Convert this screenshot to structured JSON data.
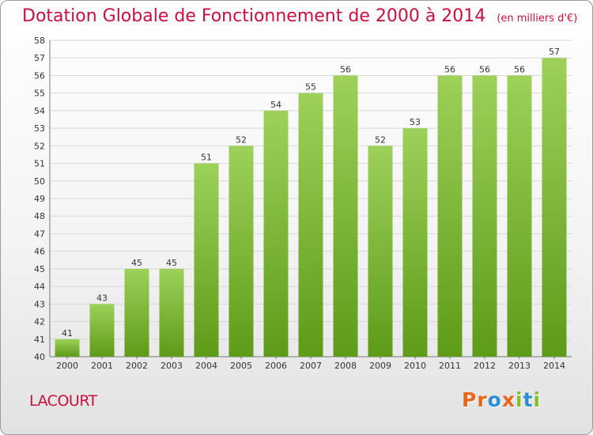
{
  "header": {
    "title": "Dotation Globale de Fonctionnement de 2000 à 2014",
    "unit": "(en milliers d'€)"
  },
  "footer": {
    "commune": "LACOURT",
    "logo": [
      "P",
      "r",
      "o",
      "x",
      "i",
      "t",
      "i"
    ]
  },
  "colors": {
    "title": "#c8103e",
    "bar_top": "#9dd15a",
    "bar_bottom": "#5e9b18",
    "grid": "#d8d8d8",
    "logo": [
      "#e8671c",
      "#e8671c",
      "#2b8fd1",
      "#e8671c",
      "#7fbf2a",
      "#2b8fd1",
      "#7fbf2a"
    ]
  },
  "chart_data": {
    "type": "bar",
    "title": "Dotation Globale de Fonctionnement de 2000 à 2014",
    "subtitle": "(en milliers d'€)",
    "xlabel": "",
    "ylabel": "",
    "categories": [
      "2000",
      "2001",
      "2002",
      "2003",
      "2004",
      "2005",
      "2006",
      "2007",
      "2008",
      "2009",
      "2010",
      "2011",
      "2012",
      "2013",
      "2014"
    ],
    "values": [
      41,
      43,
      45,
      45,
      51,
      52,
      54,
      55,
      56,
      52,
      53,
      56,
      56,
      56,
      57
    ],
    "ylim": [
      40,
      58
    ],
    "ytick_step": 1,
    "grid": true,
    "legend": "none"
  }
}
